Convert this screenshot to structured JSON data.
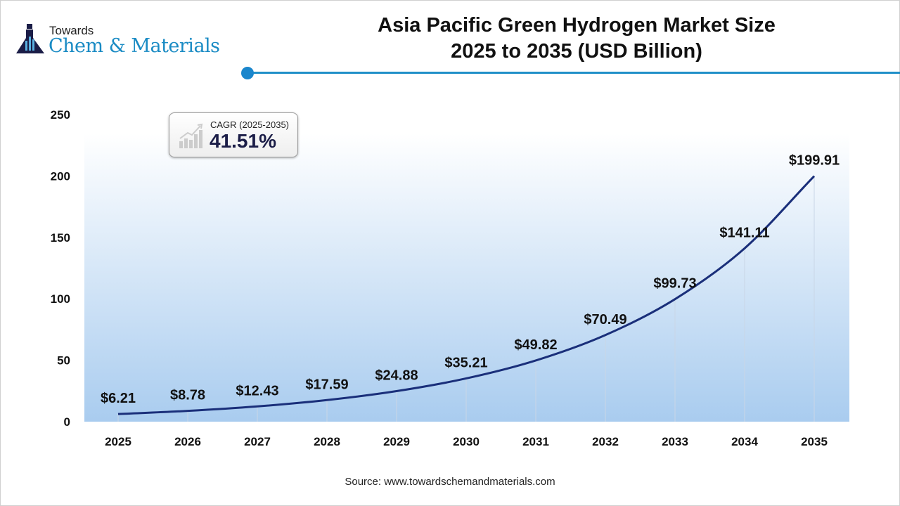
{
  "logo": {
    "line1": "Towards",
    "line2": "Chem & Materials"
  },
  "title": {
    "line1": "Asia Pacific Green Hydrogen Market Size",
    "line2": "2025 to 2035 (USD Billion)"
  },
  "cagr": {
    "label": "CAGR (2025-2035)",
    "value": "41.51%"
  },
  "source": "Source: www.towardschemandmaterials.com",
  "colors": {
    "line": "#1a2f7a",
    "accent": "#1f8fc8",
    "fill_bottom": "#a9ccef"
  },
  "chart_data": {
    "type": "area",
    "title": "Asia Pacific Green Hydrogen Market Size 2025 to 2035 (USD Billion)",
    "xlabel": "",
    "ylabel": "",
    "categories": [
      "2025",
      "2026",
      "2027",
      "2028",
      "2029",
      "2030",
      "2031",
      "2032",
      "2033",
      "2034",
      "2035"
    ],
    "values": [
      6.21,
      8.78,
      12.43,
      17.59,
      24.88,
      35.21,
      49.82,
      70.49,
      99.73,
      141.11,
      199.91
    ],
    "labels": [
      "$6.21",
      "$8.78",
      "$12.43",
      "$17.59",
      "$24.88",
      "$35.21",
      "$49.82",
      "$70.49",
      "$99.73",
      "$141.11",
      "$199.91"
    ],
    "yticks": [
      "0",
      "50",
      "100",
      "150",
      "200",
      "250"
    ],
    "ylim": [
      0,
      250
    ],
    "grid": false,
    "legend": "none"
  }
}
